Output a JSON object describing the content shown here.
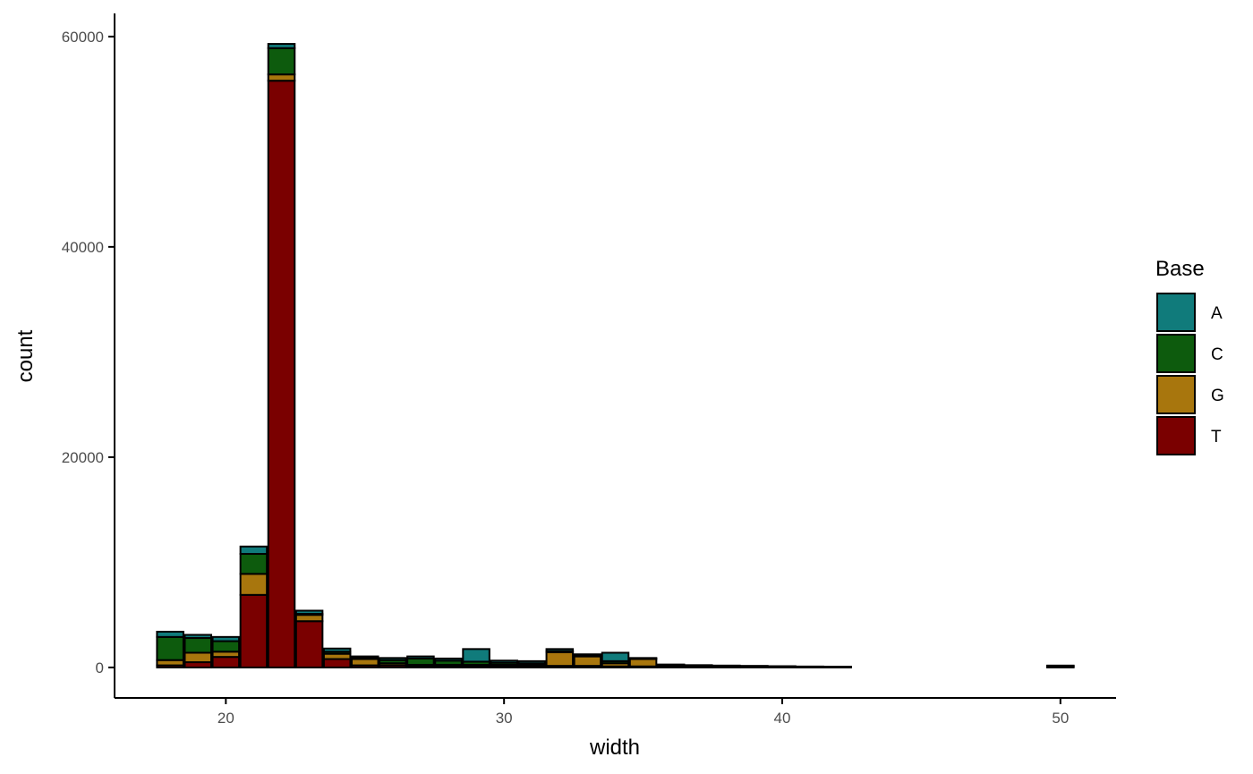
{
  "chart_data": {
    "type": "bar",
    "stacked": true,
    "xlabel": "width",
    "ylabel": "count",
    "xlim": [
      16,
      52
    ],
    "ylim": [
      -2900,
      62200
    ],
    "x_ticks": [
      20,
      30,
      40,
      50
    ],
    "y_ticks": [
      0,
      20000,
      40000,
      60000
    ],
    "x_tick_labels": [
      "20",
      "30",
      "40",
      "50"
    ],
    "y_tick_labels": [
      "0",
      "20000",
      "40000",
      "60000"
    ],
    "grid": false,
    "legend": {
      "title": "Base",
      "position": "right",
      "entries": [
        "A",
        "C",
        "G",
        "T"
      ]
    },
    "colors": {
      "A": "#107b7b",
      "C": "#0d5b0d",
      "G": "#a8760d",
      "T": "#7a0000"
    },
    "stack_order": [
      "T",
      "G",
      "C",
      "A"
    ],
    "x": [
      18,
      19,
      20,
      21,
      22,
      23,
      24,
      25,
      26,
      27,
      28,
      29,
      30,
      31,
      32,
      33,
      34,
      35,
      36,
      37,
      38,
      39,
      40,
      41,
      42,
      50
    ],
    "series": [
      {
        "name": "T",
        "values": [
          200,
          500,
          1000,
          6900,
          55800,
          4400,
          800,
          200,
          200,
          150,
          150,
          150,
          150,
          150,
          150,
          150,
          100,
          100,
          80,
          60,
          50,
          40,
          30,
          20,
          20,
          40
        ]
      },
      {
        "name": "G",
        "values": [
          500,
          900,
          500,
          2000,
          600,
          600,
          500,
          600,
          200,
          100,
          100,
          100,
          100,
          100,
          1300,
          900,
          300,
          700,
          100,
          80,
          60,
          50,
          40,
          30,
          20,
          60
        ]
      },
      {
        "name": "C",
        "values": [
          2200,
          1400,
          1000,
          1900,
          2500,
          100,
          200,
          100,
          300,
          600,
          400,
          300,
          200,
          150,
          100,
          100,
          200,
          50,
          50,
          40,
          30,
          30,
          20,
          20,
          10,
          40
        ]
      },
      {
        "name": "A",
        "values": [
          500,
          300,
          400,
          700,
          400,
          300,
          300,
          150,
          200,
          200,
          200,
          1200,
          200,
          200,
          200,
          100,
          800,
          50,
          50,
          40,
          40,
          30,
          30,
          20,
          20,
          40
        ]
      }
    ]
  }
}
